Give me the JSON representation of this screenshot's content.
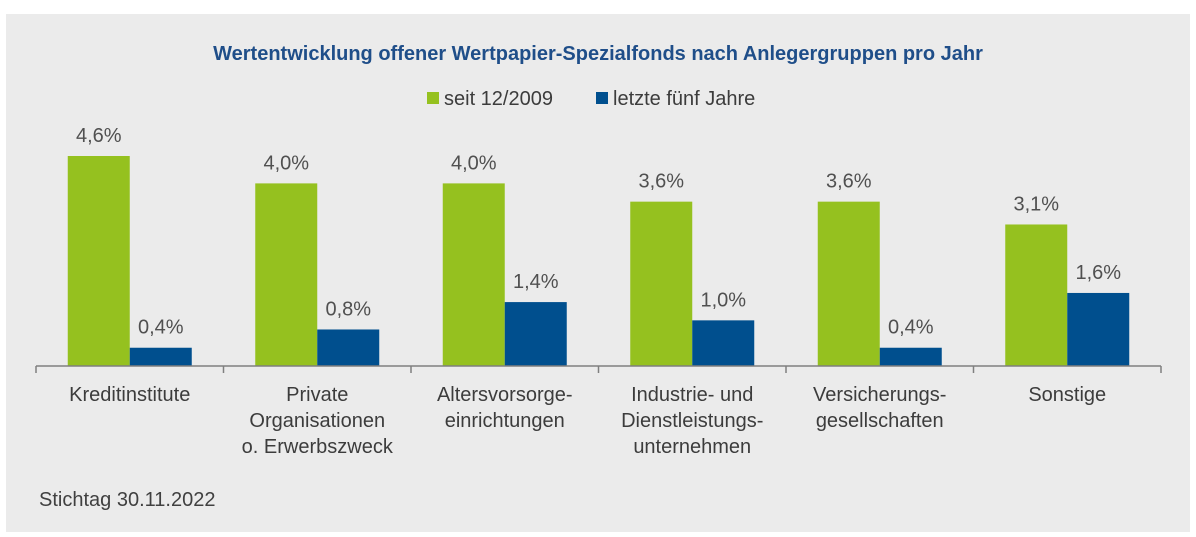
{
  "chart_data": {
    "type": "bar",
    "title": "Wertentwicklung offener Wertpapier-Spezialfonds nach Anlegergruppen pro Jahr",
    "categories": [
      [
        "Kreditinstitute"
      ],
      [
        "Private",
        "Organisationen",
        "o. Erwerbszweck"
      ],
      [
        "Altersvorsorge-",
        "einrichtungen"
      ],
      [
        "Industrie- und",
        "Dienstleistungs-",
        "unternehmen"
      ],
      [
        "Versicherungs-",
        "gesellschaften"
      ],
      [
        "Sonstige"
      ]
    ],
    "series": [
      {
        "name": "seit 12/2009",
        "color": "#95c11f",
        "values": [
          4.6,
          4.0,
          4.0,
          3.6,
          3.6,
          3.1
        ],
        "labels": [
          "4,6%",
          "4,0%",
          "4,0%",
          "3,6%",
          "3,6%",
          "3,1%"
        ]
      },
      {
        "name": "letzte fünf Jahre",
        "color": "#004f8e",
        "values": [
          0.4,
          0.8,
          1.4,
          1.0,
          0.4,
          1.6
        ],
        "labels": [
          "0,4%",
          "0,8%",
          "1,4%",
          "1,0%",
          "0,4%",
          "1,6%"
        ]
      }
    ],
    "ylim": [
      0,
      4.6
    ],
    "grid": false,
    "legend_position": "top-center"
  },
  "footnote": "Stichtag 30.11.2022"
}
